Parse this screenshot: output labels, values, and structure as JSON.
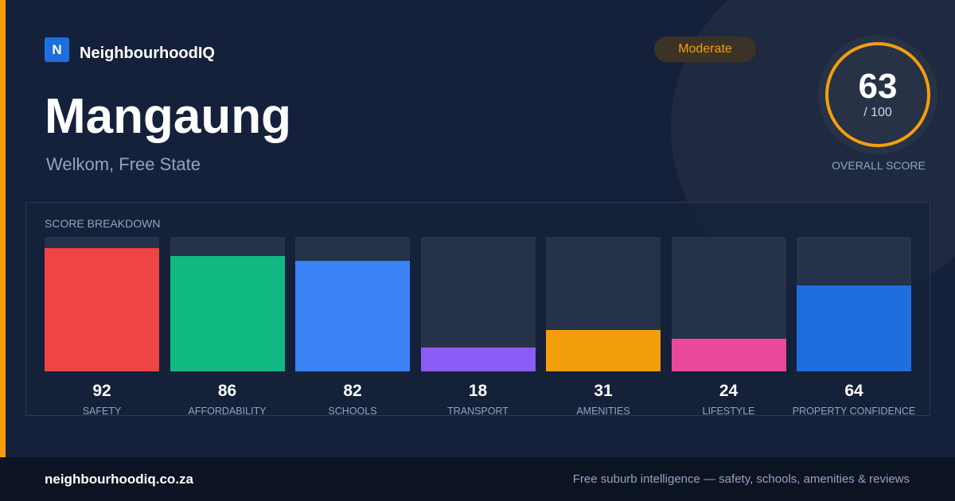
{
  "brand": {
    "logo_letter": "N",
    "name": "NeighbourhoodIQ"
  },
  "location": {
    "name": "Mangaung",
    "region": "Welkom, Free State"
  },
  "rating_badge": "Moderate",
  "overall_score": {
    "value": 63,
    "value_text": "63",
    "max_text": "/ 100",
    "label": "OVERALL SCORE",
    "fraction": 0.63
  },
  "breakdown": {
    "title": "SCORE BREAKDOWN"
  },
  "colors": {
    "accent": "#f59e0b",
    "safety": "#ef4444",
    "affordability": "#10b981",
    "schools": "#3b82f6",
    "transport": "#8b5cf6",
    "amenities": "#f59e0b",
    "lifestyle": "#ec4899",
    "property_confidence": "#1d6fe0"
  },
  "chart_data": {
    "type": "bar",
    "categories": [
      "SAFETY",
      "AFFORDABILITY",
      "SCHOOLS",
      "TRANSPORT",
      "AMENITIES",
      "LIFESTYLE",
      "PROPERTY CONFIDENCE"
    ],
    "values": [
      92,
      86,
      82,
      18,
      31,
      24,
      64
    ],
    "value_labels": [
      "92",
      "86",
      "82",
      "18",
      "31",
      "24",
      "64"
    ],
    "colors": [
      "#ef4444",
      "#10b981",
      "#3b82f6",
      "#8b5cf6",
      "#f59e0b",
      "#ec4899",
      "#1d6fe0"
    ],
    "title": "SCORE BREAKDOWN",
    "ylim": [
      0,
      100
    ],
    "grid": false
  },
  "footer": {
    "url": "neighbourhoodiq.co.za",
    "tagline": "Free suburb intelligence — safety, schools, amenities & reviews"
  }
}
